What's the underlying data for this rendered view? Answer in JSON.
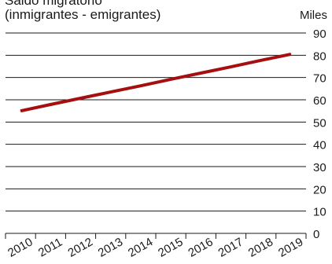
{
  "header": {
    "title": "Saldo migratorio",
    "subtitle": "(inmigrantes - emigrantes)",
    "unit": "Miles"
  },
  "chart_data": {
    "type": "line",
    "title": "Saldo migratorio",
    "subtitle": "(inmigrantes - emigrantes)",
    "unit": "Miles",
    "x": [
      "2010",
      "2011",
      "2012",
      "2013",
      "2014",
      "2015",
      "2016",
      "2017",
      "2018",
      "2019"
    ],
    "series": [
      {
        "values": [
          55,
          57.9,
          60.7,
          63.5,
          66.3,
          69.2,
          72,
          74.8,
          77.7,
          80.5
        ],
        "color": "#a50f0f"
      }
    ],
    "ylim": [
      0,
      90
    ],
    "yticks": [
      0,
      10,
      20,
      30,
      40,
      50,
      60,
      70,
      80,
      90
    ],
    "grid": true,
    "y_axis_side": "right"
  }
}
